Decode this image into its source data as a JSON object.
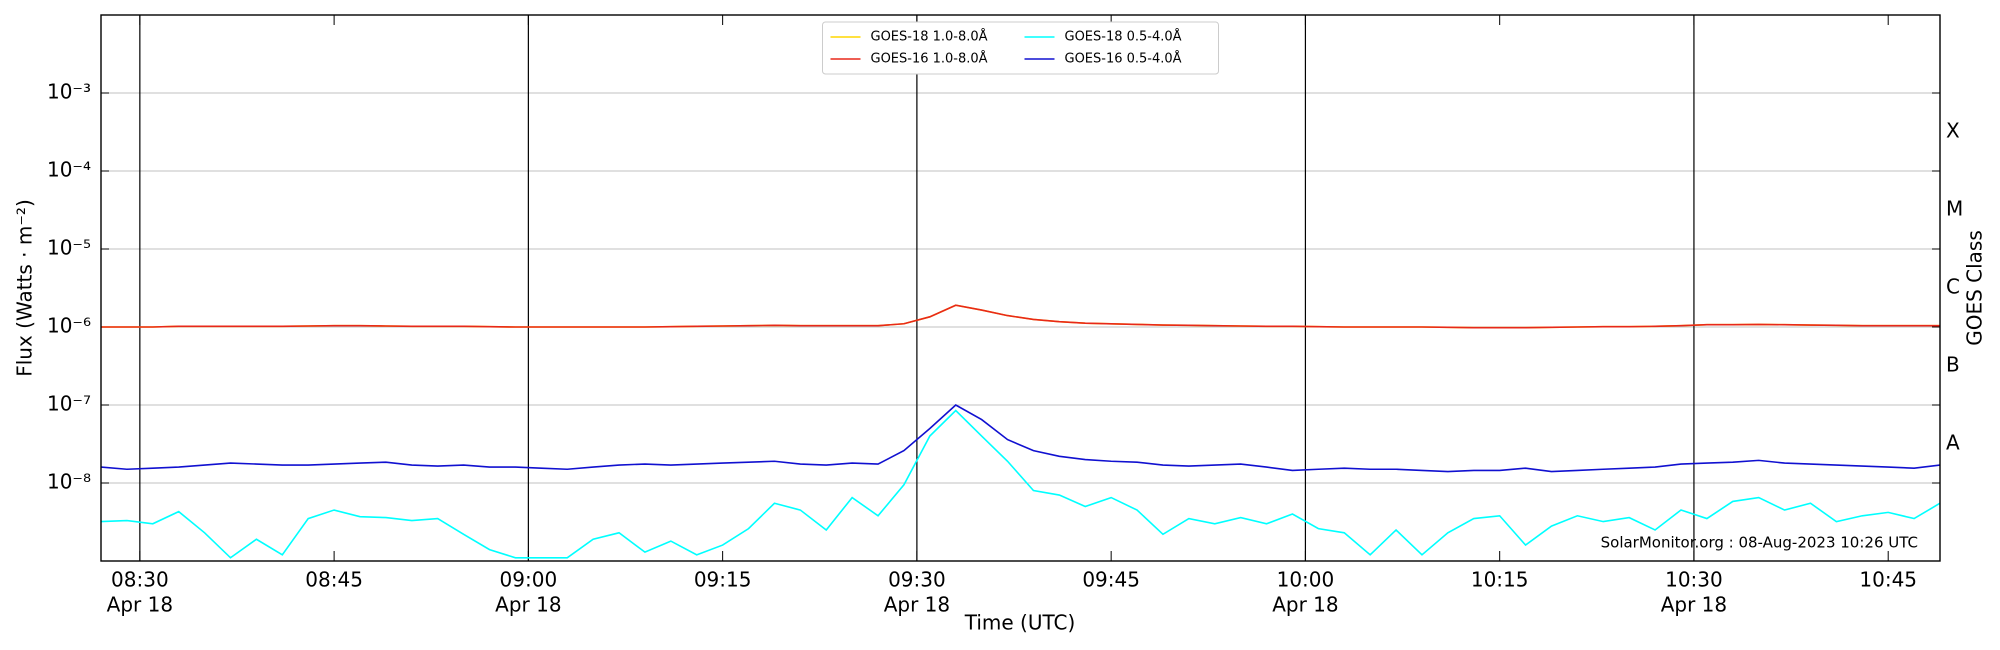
{
  "chart_data": {
    "type": "line",
    "ylabel": "Flux (Watts · m⁻²)",
    "xlabel": "Time (UTC)",
    "y2label": "GOES Class",
    "annotation": "SolarMonitor.org : 08-Aug-2023 10:26 UTC",
    "ylog": true,
    "grid": true,
    "legend": {
      "loc": "upper center",
      "ncol": 2
    },
    "xlim": [
      "08:27",
      "10:49"
    ],
    "xticks": [
      "08:30",
      "08:45",
      "09:00",
      "09:15",
      "09:30",
      "09:45",
      "10:00",
      "10:15",
      "10:30",
      "10:45"
    ],
    "xtick_dates": [
      "Apr 18",
      null,
      "Apr 18",
      null,
      "Apr 18",
      null,
      "Apr 18",
      null,
      "Apr 18",
      null
    ],
    "ylim": [
      1e-09,
      0.01
    ],
    "yticks": [
      {
        "value": 1e-08,
        "label": "10⁻⁸"
      },
      {
        "value": 1e-07,
        "label": "10⁻⁷"
      },
      {
        "value": 1e-06,
        "label": "10⁻⁶"
      },
      {
        "value": 1e-05,
        "label": "10⁻⁵"
      },
      {
        "value": 0.0001,
        "label": "10⁻⁴"
      },
      {
        "value": 0.001,
        "label": "10⁻³"
      }
    ],
    "y2lim": [
      1e-09,
      0.01
    ],
    "y2ticks": [
      {
        "value": 3.162e-08,
        "label": "A"
      },
      {
        "value": 3.162e-07,
        "label": "B"
      },
      {
        "value": 3.162e-06,
        "label": "C"
      },
      {
        "value": 3.162e-05,
        "label": "M"
      },
      {
        "value": 0.0003162,
        "label": "X"
      }
    ],
    "x": [
      "08:27",
      "08:29",
      "08:31",
      "08:33",
      "08:35",
      "08:37",
      "08:39",
      "08:41",
      "08:43",
      "08:45",
      "08:47",
      "08:49",
      "08:51",
      "08:53",
      "08:55",
      "08:57",
      "08:59",
      "09:01",
      "09:03",
      "09:05",
      "09:07",
      "09:09",
      "09:11",
      "09:13",
      "09:15",
      "09:17",
      "09:19",
      "09:21",
      "09:23",
      "09:25",
      "09:27",
      "09:29",
      "09:31",
      "09:33",
      "09:35",
      "09:37",
      "09:39",
      "09:41",
      "09:43",
      "09:45",
      "09:47",
      "09:49",
      "09:51",
      "09:53",
      "09:55",
      "09:57",
      "09:59",
      "10:01",
      "10:03",
      "10:05",
      "10:07",
      "10:09",
      "10:11",
      "10:13",
      "10:15",
      "10:17",
      "10:19",
      "10:21",
      "10:23",
      "10:25",
      "10:27",
      "10:29",
      "10:31",
      "10:33",
      "10:35",
      "10:37",
      "10:39",
      "10:41",
      "10:43",
      "10:45",
      "10:47",
      "10:49"
    ],
    "series": [
      {
        "name": "GOES-18 1.0-8.0Å",
        "color": "#ffd700",
        "values": [
          1e-06,
          1e-06,
          1e-06,
          1.02e-06,
          1.02e-06,
          1.02e-06,
          1.02e-06,
          1.02e-06,
          1.03e-06,
          1.04e-06,
          1.04e-06,
          1.03e-06,
          1.02e-06,
          1.02e-06,
          1.02e-06,
          1.01e-06,
          1e-06,
          1e-06,
          1e-06,
          1e-06,
          1e-06,
          1e-06,
          1.01e-06,
          1.02e-06,
          1.03e-06,
          1.04e-06,
          1.05e-06,
          1.04e-06,
          1.04e-06,
          1.04e-06,
          1.04e-06,
          1.1e-06,
          1.35e-06,
          1.9e-06,
          1.65e-06,
          1.4e-06,
          1.25e-06,
          1.17e-06,
          1.12e-06,
          1.1e-06,
          1.08e-06,
          1.06e-06,
          1.05e-06,
          1.04e-06,
          1.03e-06,
          1.02e-06,
          1.02e-06,
          1.01e-06,
          1e-06,
          1e-06,
          1e-06,
          1e-06,
          9.9e-07,
          9.8e-07,
          9.8e-07,
          9.8e-07,
          9.9e-07,
          1e-06,
          1.01e-06,
          1.01e-06,
          1.02e-06,
          1.04e-06,
          1.07e-06,
          1.07e-06,
          1.08e-06,
          1.07e-06,
          1.06e-06,
          1.05e-06,
          1.04e-06,
          1.04e-06,
          1.04e-06,
          1.04e-06
        ]
      },
      {
        "name": "GOES-16 1.0-8.0Å",
        "color": "#e8281a",
        "values": [
          1e-06,
          1e-06,
          1e-06,
          1.02e-06,
          1.02e-06,
          1.02e-06,
          1.02e-06,
          1.02e-06,
          1.03e-06,
          1.04e-06,
          1.04e-06,
          1.03e-06,
          1.02e-06,
          1.02e-06,
          1.02e-06,
          1.01e-06,
          1e-06,
          1e-06,
          1e-06,
          1e-06,
          1e-06,
          1e-06,
          1.01e-06,
          1.02e-06,
          1.03e-06,
          1.04e-06,
          1.05e-06,
          1.04e-06,
          1.04e-06,
          1.04e-06,
          1.04e-06,
          1.1e-06,
          1.35e-06,
          1.9e-06,
          1.65e-06,
          1.4e-06,
          1.25e-06,
          1.17e-06,
          1.12e-06,
          1.1e-06,
          1.08e-06,
          1.06e-06,
          1.05e-06,
          1.04e-06,
          1.03e-06,
          1.02e-06,
          1.02e-06,
          1.01e-06,
          1e-06,
          1e-06,
          1e-06,
          1e-06,
          9.9e-07,
          9.8e-07,
          9.8e-07,
          9.8e-07,
          9.9e-07,
          1e-06,
          1.01e-06,
          1.01e-06,
          1.02e-06,
          1.04e-06,
          1.07e-06,
          1.07e-06,
          1.08e-06,
          1.07e-06,
          1.06e-06,
          1.05e-06,
          1.04e-06,
          1.04e-06,
          1.04e-06,
          1.04e-06
        ]
      },
      {
        "name": "GOES-18 0.5-4.0Å",
        "color": "#00ffff",
        "values": [
          3.2e-09,
          3.3e-09,
          3e-09,
          4.3e-09,
          2.3e-09,
          1.1e-09,
          1.9e-09,
          1.2e-09,
          3.5e-09,
          4.5e-09,
          3.7e-09,
          3.6e-09,
          3.3e-09,
          3.5e-09,
          2.2e-09,
          1.4e-09,
          1.1e-09,
          1.1e-09,
          1.1e-09,
          1.9e-09,
          2.3e-09,
          1.3e-09,
          1.8e-09,
          1.2e-09,
          1.6e-09,
          2.6e-09,
          5.5e-09,
          4.5e-09,
          2.5e-09,
          6.5e-09,
          3.8e-09,
          9.5e-09,
          4e-08,
          8.5e-08,
          4e-08,
          1.9e-08,
          8e-09,
          7e-09,
          5e-09,
          6.5e-09,
          4.5e-09,
          2.2e-09,
          3.5e-09,
          3e-09,
          3.6e-09,
          3e-09,
          4e-09,
          2.6e-09,
          2.3e-09,
          1.2e-09,
          2.5e-09,
          1.2e-09,
          2.3e-09,
          3.5e-09,
          3.8e-09,
          1.6e-09,
          2.8e-09,
          3.8e-09,
          3.2e-09,
          3.6e-09,
          2.5e-09,
          4.5e-09,
          3.5e-09,
          5.8e-09,
          6.5e-09,
          4.5e-09,
          5.5e-09,
          3.2e-09,
          3.8e-09,
          4.2e-09,
          3.5e-09,
          5.5e-09
        ]
      },
      {
        "name": "GOES-16 0.5-4.0Å",
        "color": "#1010d0",
        "values": [
          1.6e-08,
          1.5e-08,
          1.55e-08,
          1.6e-08,
          1.7e-08,
          1.8e-08,
          1.75e-08,
          1.7e-08,
          1.7e-08,
          1.75e-08,
          1.8e-08,
          1.85e-08,
          1.7e-08,
          1.65e-08,
          1.7e-08,
          1.6e-08,
          1.6e-08,
          1.55e-08,
          1.5e-08,
          1.6e-08,
          1.7e-08,
          1.75e-08,
          1.7e-08,
          1.75e-08,
          1.8e-08,
          1.85e-08,
          1.9e-08,
          1.75e-08,
          1.7e-08,
          1.8e-08,
          1.75e-08,
          2.6e-08,
          5e-08,
          1e-07,
          6.5e-08,
          3.6e-08,
          2.6e-08,
          2.2e-08,
          2e-08,
          1.9e-08,
          1.85e-08,
          1.7e-08,
          1.65e-08,
          1.7e-08,
          1.75e-08,
          1.6e-08,
          1.45e-08,
          1.5e-08,
          1.55e-08,
          1.5e-08,
          1.5e-08,
          1.45e-08,
          1.4e-08,
          1.45e-08,
          1.45e-08,
          1.55e-08,
          1.4e-08,
          1.45e-08,
          1.5e-08,
          1.55e-08,
          1.6e-08,
          1.75e-08,
          1.8e-08,
          1.85e-08,
          1.95e-08,
          1.8e-08,
          1.75e-08,
          1.7e-08,
          1.65e-08,
          1.6e-08,
          1.55e-08,
          1.7e-08
        ]
      }
    ]
  }
}
